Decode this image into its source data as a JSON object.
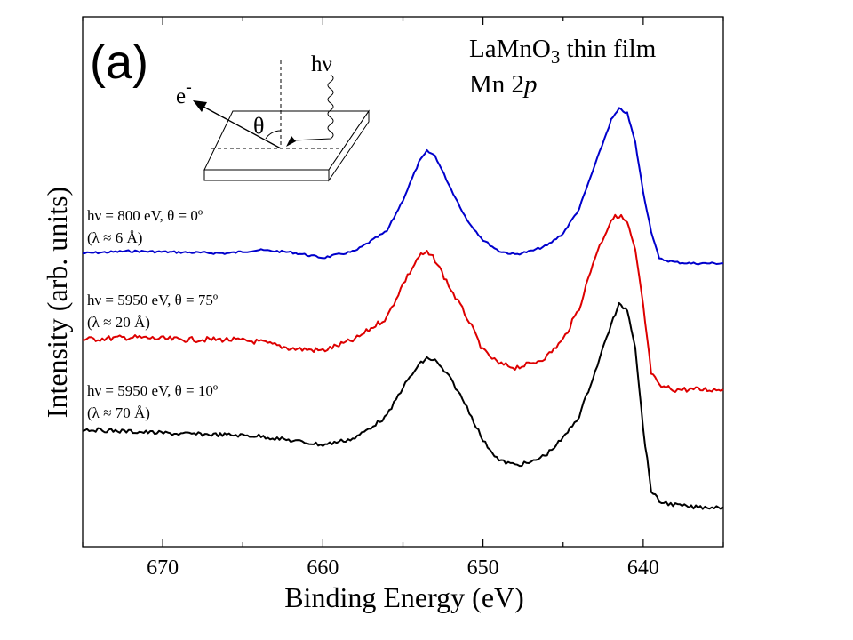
{
  "chart_data": {
    "type": "line",
    "panel_label": "(a)",
    "title_line1_base": "LaMnO",
    "title_line1_sub": "3",
    "title_line1_rest": " thin film",
    "title_line2_base": "Mn 2",
    "title_line2_italic": "p",
    "xlabel": "Binding Energy (eV)",
    "ylabel": "Intensity (arb. units)",
    "xlim": [
      675,
      635
    ],
    "x_reversed": true,
    "xticks": [
      670,
      660,
      650,
      640
    ],
    "xtick_labels": [
      "670",
      "660",
      "650",
      "640"
    ],
    "y_ticks_shown": false,
    "grid": false,
    "inset": {
      "photon_label": "hν",
      "electron_label": "e",
      "electron_sup": "-",
      "angle_label": "θ"
    },
    "series": [
      {
        "name_line1": "hν = 800 eV, θ = 0º",
        "name_line2": "(λ ≈ 6 Å)",
        "color": "#0000cc",
        "x": [
          675,
          672,
          669,
          666,
          664,
          662,
          660,
          658,
          656,
          655,
          654,
          653.5,
          653,
          652,
          651,
          650,
          649,
          648,
          647,
          646,
          645,
          644,
          643,
          642,
          641.5,
          641,
          640.5,
          640,
          639.5,
          639,
          638,
          637,
          636,
          635
        ],
        "y": [
          0.0,
          0.02,
          0.01,
          0.0,
          0.03,
          0.01,
          -0.04,
          0.02,
          0.2,
          0.48,
          0.82,
          0.92,
          0.88,
          0.58,
          0.3,
          0.12,
          0.02,
          -0.01,
          0.02,
          0.07,
          0.18,
          0.4,
          0.8,
          1.2,
          1.3,
          1.26,
          1.0,
          0.55,
          0.2,
          -0.05,
          -0.08,
          -0.09,
          -0.09,
          -0.09
        ]
      },
      {
        "name_line1": "hν = 5950 eV, θ = 75º",
        "name_line2": "(λ ≈ 20 Å)",
        "color": "#dd0000",
        "x": [
          675,
          672,
          669,
          666,
          664,
          662,
          660,
          658,
          656,
          655,
          654,
          653.5,
          653,
          652,
          651,
          650,
          649,
          648,
          647,
          646,
          645,
          644,
          643,
          642,
          641.5,
          641,
          640.5,
          640,
          639.5,
          639,
          638,
          637,
          636,
          635
        ],
        "y": [
          0.0,
          0.02,
          0.0,
          0.0,
          -0.02,
          -0.08,
          -0.1,
          0.0,
          0.2,
          0.5,
          0.75,
          0.78,
          0.72,
          0.45,
          0.2,
          -0.1,
          -0.22,
          -0.25,
          -0.22,
          -0.15,
          0.0,
          0.28,
          0.75,
          1.08,
          1.12,
          1.05,
          0.8,
          0.3,
          -0.3,
          -0.42,
          -0.45,
          -0.45,
          -0.45,
          -0.45
        ]
      },
      {
        "name_line1": "hν = 5950 eV, θ = 10º",
        "name_line2": "(λ ≈ 70 Å)",
        "color": "#000000",
        "x": [
          675,
          672,
          669,
          666,
          664,
          662,
          660,
          658,
          656,
          655,
          654,
          653.5,
          653,
          652,
          651,
          650,
          649,
          648,
          647,
          646,
          645,
          644,
          643,
          642,
          641.5,
          641,
          640.5,
          640,
          639.5,
          639,
          638,
          637,
          636,
          635
        ],
        "y": [
          0.0,
          -0.02,
          -0.04,
          -0.05,
          -0.06,
          -0.1,
          -0.14,
          -0.08,
          0.12,
          0.38,
          0.58,
          0.64,
          0.62,
          0.45,
          0.2,
          -0.1,
          -0.28,
          -0.32,
          -0.3,
          -0.22,
          -0.08,
          0.12,
          0.52,
          0.95,
          1.12,
          1.08,
          0.75,
          0.0,
          -0.55,
          -0.65,
          -0.68,
          -0.7,
          -0.7,
          -0.7
        ]
      }
    ]
  }
}
